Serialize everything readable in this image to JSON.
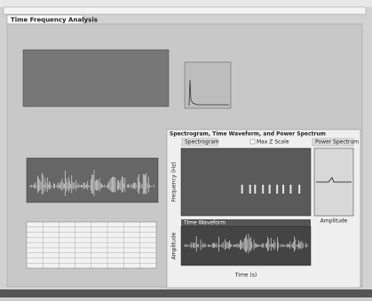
{
  "window": {
    "title": "Time Frequency Analysis"
  },
  "panel": {
    "title": "Spectrogram, Time Waveform, and Power Spectrum",
    "controls": [
      "Spectrogram",
      "Max Z Scale",
      "Power Spectrum"
    ],
    "spectrogram": {
      "ylabel": "Frequency (Hz)"
    },
    "waveform": {
      "title": "Time Waveform",
      "ylabel": "Amplitude",
      "xlabel": "Time (s)"
    },
    "power": {
      "xlabel": "Amplitude"
    }
  }
}
